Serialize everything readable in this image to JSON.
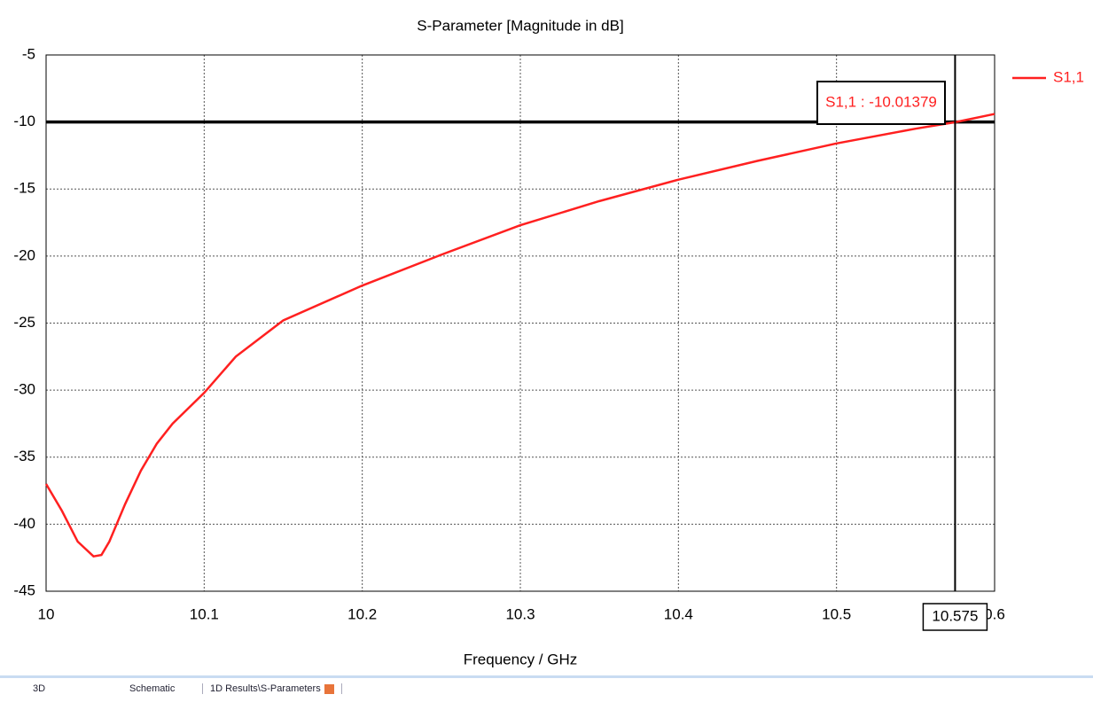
{
  "chart_data": {
    "type": "line",
    "title": "S-Parameter [Magnitude in dB]",
    "x_label": "Frequency / GHz",
    "x": [
      10,
      10.01,
      10.02,
      10.03,
      10.035,
      10.04,
      10.05,
      10.06,
      10.07,
      10.08,
      10.1,
      10.12,
      10.15,
      10.2,
      10.25,
      10.3,
      10.35,
      10.4,
      10.45,
      10.5,
      10.55,
      10.575,
      10.6
    ],
    "series": [
      {
        "name": "S1,1",
        "color": "#ff2020",
        "values": [
          -37,
          -39,
          -41.3,
          -42.4,
          -42.3,
          -41.3,
          -38.5,
          -36,
          -34,
          -32.5,
          -30.2,
          -27.5,
          -24.8,
          -22.2,
          -19.9,
          -17.7,
          -15.9,
          -14.3,
          -12.9,
          -11.6,
          -10.5,
          -10.01379,
          -9.4
        ]
      }
    ],
    "xlim": [
      10,
      10.6
    ],
    "ylim": [
      -45,
      -5
    ],
    "xticks": [
      10,
      10.1,
      10.2,
      10.3,
      10.4,
      10.5,
      {
        "value": 10.6,
        "label": "0.6"
      }
    ],
    "yticks": [
      -5,
      -10,
      -15,
      -20,
      -25,
      -30,
      -35,
      -40,
      -45
    ],
    "grid": true,
    "legend": "right",
    "threshold": -10,
    "marker": {
      "x": 10.575,
      "label": "S1,1 : -10.01379"
    }
  },
  "tabs": [
    "3D",
    "Schematic",
    "1D Results\\S-Parameters"
  ]
}
